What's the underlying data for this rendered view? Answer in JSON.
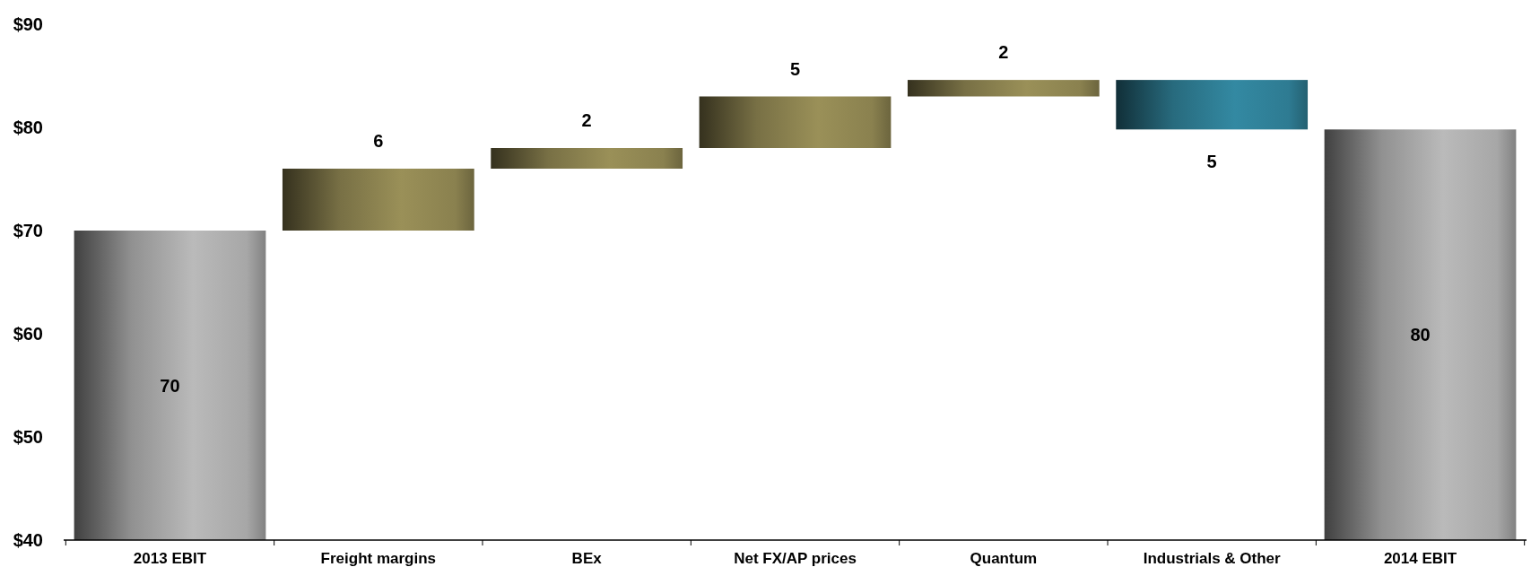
{
  "chart_data": {
    "type": "bar",
    "categories": [
      "2013 EBIT",
      "Freight margins",
      "BEx",
      "Net FX/AP prices",
      "Quantum",
      "Industrials & Other",
      "2014 EBIT"
    ],
    "values": [
      70,
      6,
      2,
      5,
      1.6,
      -4.8,
      79.8
    ],
    "base": [
      null,
      70,
      76,
      78,
      83,
      84.6,
      null
    ],
    "colors": [
      "#bababa",
      "#9a9058",
      "#9a9058",
      "#9a9058",
      "#9a9058",
      "#3389a2",
      "#bababa"
    ],
    "value_labels": [
      "70",
      "6",
      "2",
      "5",
      "2",
      "5",
      "80"
    ],
    "ylim": [
      40,
      90
    ],
    "yticks": [
      {
        "value": 40,
        "label": "$40"
      },
      {
        "value": 50,
        "label": "$50"
      },
      {
        "value": 60,
        "label": "$60"
      },
      {
        "value": 70,
        "label": "$70"
      },
      {
        "value": 80,
        "label": "$80"
      },
      {
        "value": 90,
        "label": "$90"
      }
    ]
  }
}
